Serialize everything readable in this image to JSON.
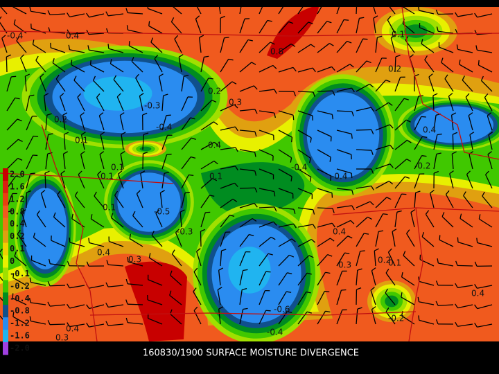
{
  "title": "160830/1900 SURFACE MOISTURE DIVERGENCE",
  "legend": [
    {
      "label": "2.0",
      "color": "#c80000"
    },
    {
      "label": "1.6",
      "color": "#dc1e10"
    },
    {
      "label": "1.2",
      "color": "#e84010"
    },
    {
      "label": "0.8",
      "color": "#f05a1e"
    },
    {
      "label": "0.4",
      "color": "#e87814"
    },
    {
      "label": "0.2",
      "color": "#e0a010"
    },
    {
      "label": "0.1",
      "color": "#f0d000"
    },
    {
      "label": "0",
      "color": "#e8f000"
    },
    {
      "label": "-0.1",
      "color": "#a0e000"
    },
    {
      "label": "-0.2",
      "color": "#40c800"
    },
    {
      "label": "-0.4",
      "color": "#008c20"
    },
    {
      "label": "-0.8",
      "color": "#10508c"
    },
    {
      "label": "-1.2",
      "color": "#2a8cf0"
    },
    {
      "label": "-1.6",
      "color": "#20b4f0"
    },
    {
      "label": "-2.0",
      "color": "#a040e0"
    }
  ],
  "contour_labels": [
    "-0.4",
    "0.4",
    "-0.3",
    "-0.4",
    "0.2",
    "0.2",
    "0.1",
    "0.1",
    "0.8",
    "0.1",
    "0.3",
    "0.2",
    "0.4",
    "-0.4",
    "-0.4",
    "-0.2",
    "0.1",
    "-0.5",
    "-0.3",
    "0.1",
    "0.4",
    "0.3",
    "0.4",
    "-0.6",
    "0.4",
    "0.3",
    "0.2",
    "-0.2",
    "0.1",
    "0.4",
    "-0.4",
    "0.3",
    "0.4",
    "0.1"
  ]
}
